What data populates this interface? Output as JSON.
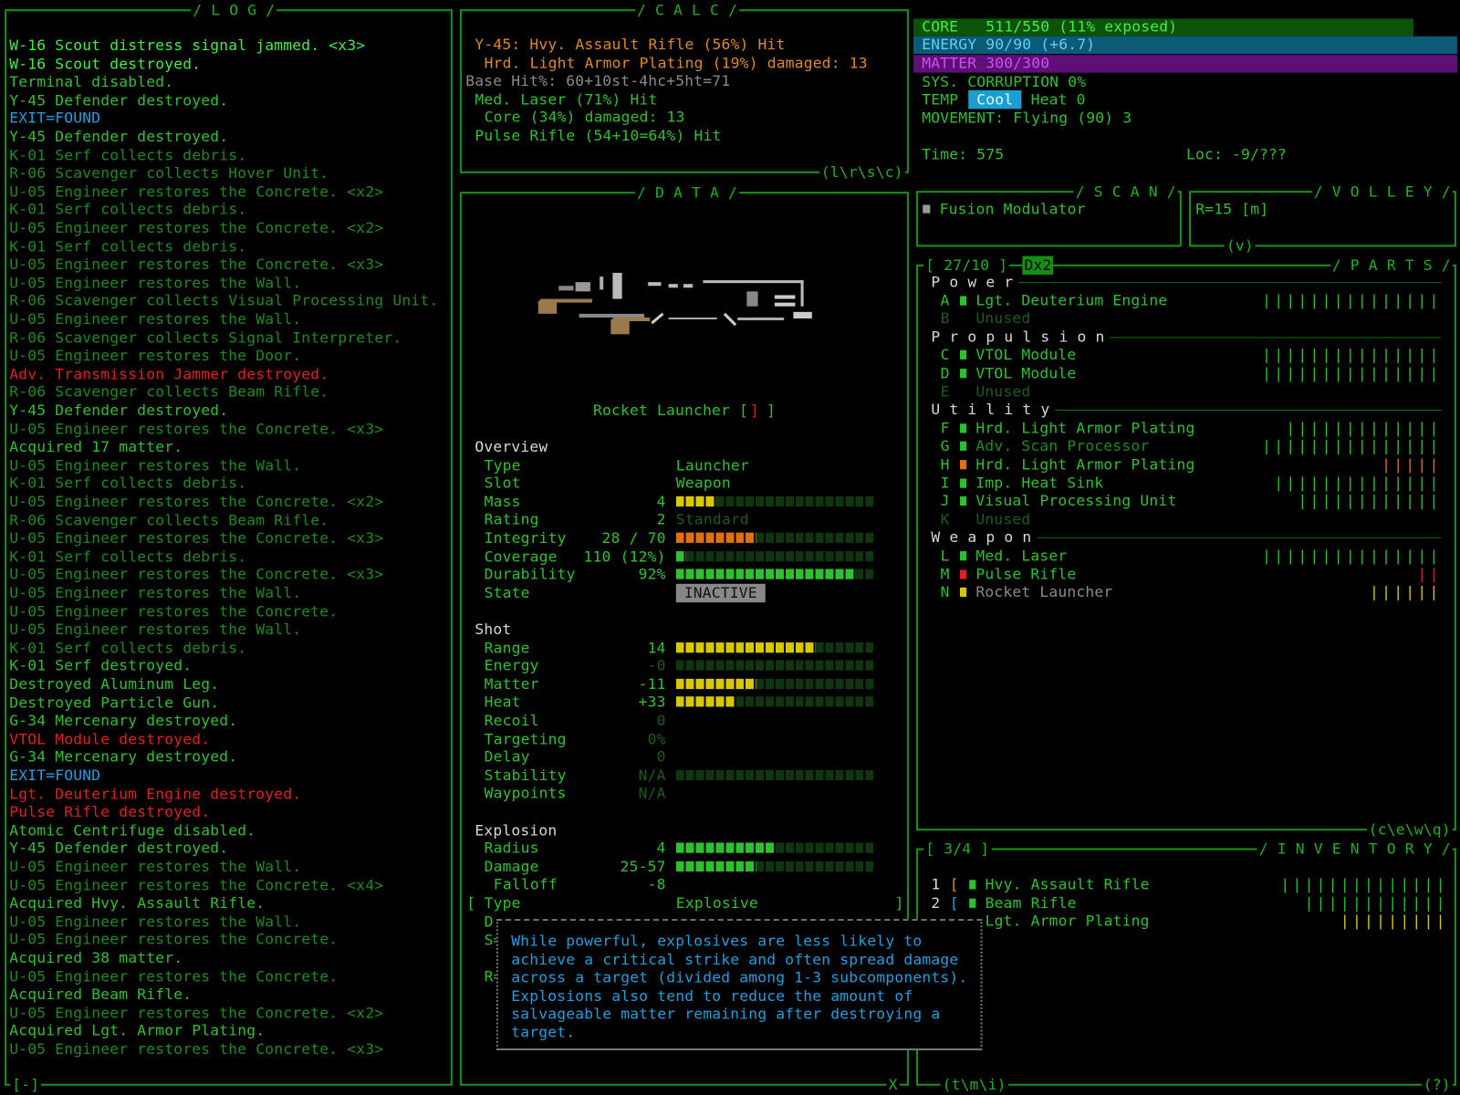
{
  "log": {
    "title": "/ L O G /",
    "footer": "[-]",
    "lines": [
      {
        "text": "W-16 Scout distress signal jammed. <x3>",
        "color": "#44ee44"
      },
      {
        "text": "W-16 Scout destroyed.",
        "color": "#44ee44"
      },
      {
        "text": "Terminal disabled.",
        "color": "#2fc02f"
      },
      {
        "text": "Y-45 Defender destroyed.",
        "color": "#2fc02f"
      },
      {
        "text": "EXIT=FOUND",
        "color": "#1f9fe0"
      },
      {
        "text": "Y-45 Defender destroyed.",
        "color": "#2fc02f"
      },
      {
        "text": "K-01 Serf collects debris.",
        "color": "#1d8a1d"
      },
      {
        "text": "R-06 Scavenger collects Hover Unit.",
        "color": "#1d8a1d"
      },
      {
        "text": "U-05 Engineer restores the Concrete. <x2>",
        "color": "#1d8a1d"
      },
      {
        "text": "K-01 Serf collects debris.",
        "color": "#1d8a1d"
      },
      {
        "text": "U-05 Engineer restores the Concrete. <x2>",
        "color": "#1d8a1d"
      },
      {
        "text": "K-01 Serf collects debris.",
        "color": "#1d8a1d"
      },
      {
        "text": "U-05 Engineer restores the Concrete. <x3>",
        "color": "#1d8a1d"
      },
      {
        "text": "U-05 Engineer restores the Wall.",
        "color": "#1d8a1d"
      },
      {
        "text": "R-06 Scavenger collects Visual Processing Unit.",
        "color": "#1d8a1d"
      },
      {
        "text": "U-05 Engineer restores the Wall.",
        "color": "#1d8a1d"
      },
      {
        "text": "R-06 Scavenger collects Signal Interpreter.",
        "color": "#1d8a1d"
      },
      {
        "text": "U-05 Engineer restores the Door.",
        "color": "#1d8a1d"
      },
      {
        "text": "Adv. Transmission Jammer destroyed.",
        "color": "#e02020"
      },
      {
        "text": "R-06 Scavenger collects Beam Rifle.",
        "color": "#1d8a1d"
      },
      {
        "text": "Y-45 Defender destroyed.",
        "color": "#2fc02f"
      },
      {
        "text": "U-05 Engineer restores the Concrete. <x3>",
        "color": "#1d8a1d"
      },
      {
        "text": "Acquired 17 matter.",
        "color": "#2fc02f"
      },
      {
        "text": "U-05 Engineer restores the Wall.",
        "color": "#1d8a1d"
      },
      {
        "text": "K-01 Serf collects debris.",
        "color": "#1d8a1d"
      },
      {
        "text": "U-05 Engineer restores the Concrete. <x2>",
        "color": "#1d8a1d"
      },
      {
        "text": "R-06 Scavenger collects Beam Rifle.",
        "color": "#1d8a1d"
      },
      {
        "text": "U-05 Engineer restores the Concrete. <x3>",
        "color": "#1d8a1d"
      },
      {
        "text": "K-01 Serf collects debris.",
        "color": "#1d8a1d"
      },
      {
        "text": "U-05 Engineer restores the Concrete. <x3>",
        "color": "#1d8a1d"
      },
      {
        "text": "U-05 Engineer restores the Wall.",
        "color": "#1d8a1d"
      },
      {
        "text": "U-05 Engineer restores the Concrete.",
        "color": "#1d8a1d"
      },
      {
        "text": "U-05 Engineer restores the Wall.",
        "color": "#1d8a1d"
      },
      {
        "text": "K-01 Serf collects debris.",
        "color": "#1d8a1d"
      },
      {
        "text": "K-01 Serf destroyed.",
        "color": "#2fc02f"
      },
      {
        "text": "Destroyed Aluminum Leg.",
        "color": "#2fc02f"
      },
      {
        "text": "Destroyed Particle Gun.",
        "color": "#2fc02f"
      },
      {
        "text": "G-34 Mercenary destroyed.",
        "color": "#2fc02f"
      },
      {
        "text": "VTOL Module destroyed.",
        "color": "#e02020"
      },
      {
        "text": "G-34 Mercenary destroyed.",
        "color": "#2fc02f"
      },
      {
        "text": "EXIT=FOUND",
        "color": "#1f9fe0"
      },
      {
        "text": "Lgt. Deuterium Engine destroyed.",
        "color": "#e02020"
      },
      {
        "text": "Pulse Rifle destroyed.",
        "color": "#e02020"
      },
      {
        "text": "Atomic Centrifuge disabled.",
        "color": "#2fc02f"
      },
      {
        "text": "Y-45 Defender destroyed.",
        "color": "#2fc02f"
      },
      {
        "text": "U-05 Engineer restores the Wall.",
        "color": "#1d8a1d"
      },
      {
        "text": "U-05 Engineer restores the Concrete. <x4>",
        "color": "#1d8a1d"
      },
      {
        "text": "Acquired Hvy. Assault Rifle.",
        "color": "#2fc02f"
      },
      {
        "text": "U-05 Engineer restores the Wall.",
        "color": "#1d8a1d"
      },
      {
        "text": "U-05 Engineer restores the Concrete.",
        "color": "#1d8a1d"
      },
      {
        "text": "Acquired 38 matter.",
        "color": "#2fc02f"
      },
      {
        "text": "U-05 Engineer restores the Concrete.",
        "color": "#1d8a1d"
      },
      {
        "text": "Acquired Beam Rifle.",
        "color": "#2fc02f"
      },
      {
        "text": "U-05 Engineer restores the Concrete. <x2>",
        "color": "#1d8a1d"
      },
      {
        "text": "Acquired Lgt. Armor Plating.",
        "color": "#2fc02f"
      },
      {
        "text": "U-05 Engineer restores the Concrete. <x3>",
        "color": "#1d8a1d"
      }
    ]
  },
  "calc": {
    "title": "/ C A L C /",
    "footer": "(l\\r\\s\\c)",
    "lines": [
      {
        "text": "Y-45: Hvy. Assault Rifle (56%) Hit",
        "color": "#e08a1a"
      },
      {
        "text": "Hrd. Light Armor Plating (19%) damaged: 13",
        "color": "#e08a1a"
      },
      {
        "text": "Base Hit%: 60+10st-4hc+5ht=71",
        "color": "#8a8a8a"
      },
      {
        "text": "Med. Laser (71%) Hit",
        "color": "#2fc02f"
      },
      {
        "text": "Core (34%) damaged: 13",
        "color": "#2fc02f"
      },
      {
        "text": "Pulse Rifle (54+10=64%) Hit",
        "color": "#2fc02f"
      }
    ]
  },
  "status": {
    "core": "CORE   511/550 (11% exposed)",
    "energy": "ENERGY 90/90 (+6.7)",
    "matter": "MATTER 300/300",
    "corruption": "SYS. CORRUPTION 0%",
    "temp_label": "TEMP",
    "temp_state": "Cool",
    "heat": "Heat 0",
    "movement": "MOVEMENT: Flying (90) 3",
    "time": "Time: 575",
    "location": "Loc: -9/???"
  },
  "scan": {
    "title": "/ S C A N /",
    "item": "Fusion Modulator"
  },
  "volley": {
    "title": "/ V O L L E Y /",
    "range": "R=15 [m]",
    "footer": "(v)"
  },
  "parts": {
    "title": "/ P A R T S /",
    "capacity": "[ 27/10 ]",
    "tag": "Dx2",
    "footer": "(c\\e\\w\\q)",
    "groups": [
      {
        "name": "P o w e r",
        "slots": [
          {
            "key": "A",
            "name": "Lgt. Deuterium Engine",
            "integrity": "|||||||||||||||",
            "color": "#2fc02f"
          },
          {
            "key": "B",
            "name": "Unused"
          }
        ]
      },
      {
        "name": "P r o p u l s i o n",
        "slots": [
          {
            "key": "C",
            "name": "VTOL Module",
            "integrity": "|||||||||||||||",
            "color": "#2fc02f"
          },
          {
            "key": "D",
            "name": "VTOL Module",
            "integrity": "|||||||||||||||",
            "color": "#2fc02f"
          },
          {
            "key": "E",
            "name": "Unused"
          }
        ]
      },
      {
        "name": "U t i l i t y",
        "slots": [
          {
            "key": "F",
            "name": "Hrd. Light Armor Plating",
            "integrity": "|||||||||||||",
            "color": "#2fc02f"
          },
          {
            "key": "G",
            "name": "Adv. Scan Processor",
            "integrity": "|||||||||||||||",
            "color": "#2fc02f",
            "name_color": "#1d8a1d"
          },
          {
            "key": "H",
            "name": "Hrd. Light Armor Plating",
            "integrity": "|||||",
            "color": "#e07010"
          },
          {
            "key": "I",
            "name": "Imp. Heat Sink",
            "integrity": "||||||||||||||",
            "color": "#2fc02f"
          },
          {
            "key": "J",
            "name": "Visual Processing Unit",
            "integrity": "||||||||||||",
            "color": "#2fc02f"
          },
          {
            "key": "K",
            "name": "Unused"
          }
        ]
      },
      {
        "name": "W e a p o n",
        "slots": [
          {
            "key": "L",
            "name": "Med. Laser",
            "integrity": "|||||||||||||||",
            "color": "#2fc02f"
          },
          {
            "key": "M",
            "name": "Pulse Rifle",
            "integrity": "||",
            "color": "#e02020"
          },
          {
            "key": "N",
            "name": "Rocket Launcher",
            "integrity": "||||||",
            "color": "#d8c800",
            "name_color": "#8a8a8a"
          }
        ]
      }
    ]
  },
  "inventory": {
    "title": "/ I N V E N T O R Y /",
    "capacity": "[ 3/4 ]",
    "footer": "(t\\m\\i)",
    "help": "(?)",
    "items": [
      {
        "key": "1",
        "bracket": "[",
        "bracket_color": "#e08a1a",
        "name": "Hvy. Assault Rifle",
        "integrity": "||||||||||||||",
        "color": "#2fc02f"
      },
      {
        "key": "2",
        "bracket": "[",
        "bracket_color": "#1f9fe0",
        "name": "Beam Rifle",
        "integrity": "||||||||||||",
        "color": "#2fc02f"
      },
      {
        "name": "Lgt. Armor Plating",
        "integrity": "|||||||||",
        "color": "#d8c800"
      }
    ]
  },
  "data": {
    "title": "/ D A T A /",
    "close": "X",
    "item_name": "Rocket Launcher [",
    "item_glyph": "]",
    "item_close": "]",
    "sections": [
      {
        "name": "Overview",
        "rows": [
          {
            "label": "Type",
            "text": "Launcher"
          },
          {
            "label": "Slot",
            "text": "Weapon"
          },
          {
            "label": "Mass",
            "value": "4",
            "bar": 4,
            "bar_color": "#d8c800"
          },
          {
            "label": "Rating",
            "value": "2",
            "text": "Standard",
            "text_color": "#1d5a1d"
          },
          {
            "label": "Integrity",
            "value": "28 / 70",
            "bar": 8,
            "bar_color": "#e07010"
          },
          {
            "label": "Coverage",
            "value": "110 (12%)",
            "bar": 1,
            "bar_color": "#2fc02f"
          },
          {
            "label": "Durability",
            "value": "92%",
            "bar": 18,
            "bar_color": "#2fc02f"
          },
          {
            "label": "State",
            "badge": "INACTIVE"
          }
        ]
      },
      {
        "name": "Shot",
        "rows": [
          {
            "label": "Range",
            "value": "14",
            "bar": 14,
            "bar_color": "#d8c800"
          },
          {
            "label": "Energy",
            "value": "-0",
            "color": "#1d5a1d",
            "bar": 0,
            "bar_color": "#d8c800"
          },
          {
            "label": "Matter",
            "value": "-11",
            "bar": 8,
            "bar_color": "#d8c800"
          },
          {
            "label": "Heat",
            "value": "+33",
            "bar": 6,
            "bar_color": "#d8c800"
          },
          {
            "label": "Recoil",
            "value": "0",
            "color": "#1d5a1d"
          },
          {
            "label": "Targeting",
            "value": "0%",
            "color": "#1d5a1d"
          },
          {
            "label": "Delay",
            "value": "0",
            "color": "#1d5a1d"
          },
          {
            "label": "Stability",
            "value": "N/A",
            "color": "#1d5a1d",
            "bar": 0,
            "bar_color": "#d8c800"
          },
          {
            "label": "Waypoints",
            "value": "N/A",
            "color": "#1d5a1d"
          }
        ]
      },
      {
        "name": "Explosion",
        "rows": [
          {
            "label": "Radius",
            "value": "4",
            "bar": 10,
            "bar_color": "#2fc02f"
          },
          {
            "label": "Damage",
            "value": "25-57",
            "bar": 8,
            "bar_color": "#2fc02f"
          },
          {
            "label": "Falloff",
            "value": "-8",
            "indent": true
          },
          {
            "label": "Type",
            "text": "Explosive",
            "open": "[",
            "close": "]"
          }
        ]
      }
    ],
    "obscured": [
      "D",
      "S=",
      "",
      "R="
    ],
    "tooltip": [
      "While powerful, explosives are less likely to",
      "achieve a critical strike and often spread damage",
      "across a target (divided among 1-3 subcomponents).",
      "Explosions also tend to reduce the amount of",
      "salvageable matter remaining after destroying a",
      "target."
    ]
  }
}
